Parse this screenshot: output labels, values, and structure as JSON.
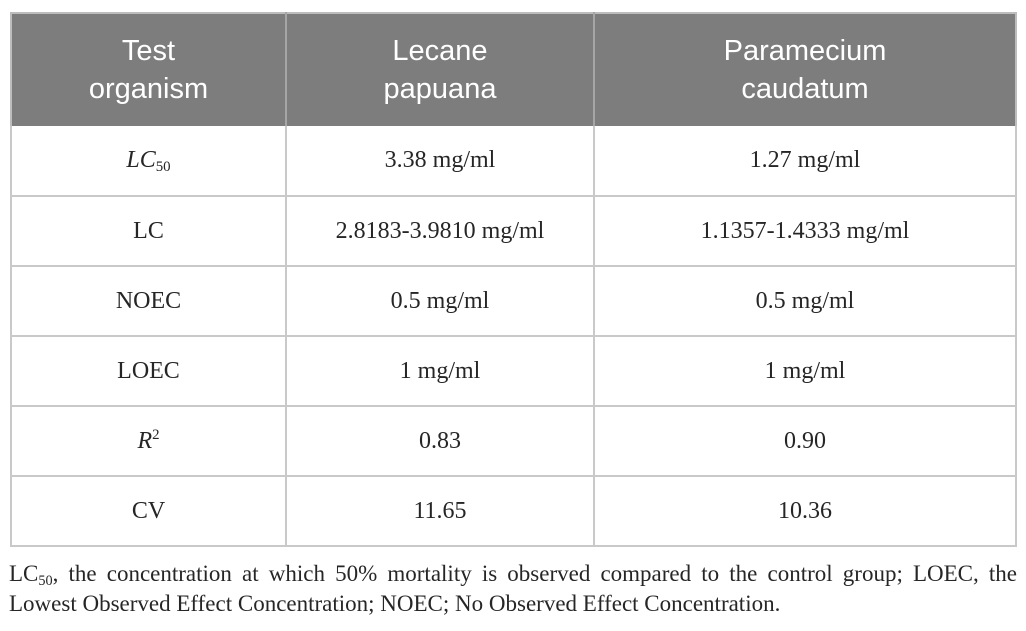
{
  "table": {
    "header": {
      "columns": [
        "Test\norganism",
        "Lecane\npapuana",
        "Paramecium\ncaudatum"
      ]
    },
    "rows": [
      {
        "param": "LC",
        "param_sub": "50",
        "lecane": "3.38 mg/ml",
        "paramecium": "1.27 mg/ml"
      },
      {
        "param": "LC",
        "lecane": "2.8183-3.9810 mg/ml",
        "paramecium": "1.1357-1.4333 mg/ml"
      },
      {
        "param": "NOEC",
        "lecane": "0.5 mg/ml",
        "paramecium": "0.5 mg/ml"
      },
      {
        "param": "LOEC",
        "lecane": "1 mg/ml",
        "paramecium": "1 mg/ml"
      },
      {
        "param": "R",
        "param_sup": "2",
        "lecane": "0.83",
        "paramecium": "0.90"
      },
      {
        "param": "CV",
        "lecane": "11.65",
        "paramecium": "10.36"
      }
    ]
  },
  "footnote": {
    "abbr": "LC",
    "abbr_sub": "50",
    "text": ", the concentration at which 50% mortality is observed compared to the control group; LOEC, the Lowest Observed Effect Concentration; NOEC; No Observed Effect Concentration."
  },
  "colors": {
    "header_bg": "#7d7d7d",
    "header_text": "#ffffff",
    "header_divider": "#a6a6a6",
    "grid_line": "#c9c9c9",
    "outer_border": "#bdbdbd",
    "body_text": "#262626"
  }
}
